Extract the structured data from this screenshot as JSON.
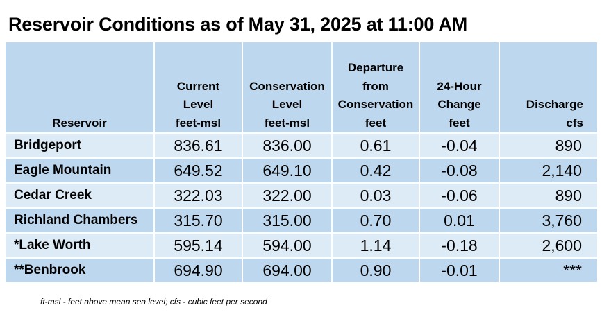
{
  "title": "Reservoir Conditions as of May 31, 2025 at 11:00 AM",
  "table": {
    "headers": [
      {
        "lines": [
          "Reservoir"
        ]
      },
      {
        "lines": [
          "Current",
          "Level",
          "feet-msl"
        ]
      },
      {
        "lines": [
          "Conservation",
          "Level",
          "feet-msl"
        ]
      },
      {
        "lines": [
          "Departure",
          "from",
          "Conservation",
          "feet"
        ]
      },
      {
        "lines": [
          "24-Hour",
          "Change",
          "feet"
        ]
      },
      {
        "lines": [
          "Discharge",
          "cfs"
        ]
      }
    ],
    "rows": [
      {
        "reservoir": "Bridgeport",
        "current": "836.61",
        "conservation": "836.00",
        "departure": "0.61",
        "change": "-0.04",
        "discharge": "890"
      },
      {
        "reservoir": "Eagle Mountain",
        "current": "649.52",
        "conservation": "649.10",
        "departure": "0.42",
        "change": "-0.08",
        "discharge": "2,140"
      },
      {
        "reservoir": "Cedar Creek",
        "current": "322.03",
        "conservation": "322.00",
        "departure": "0.03",
        "change": "-0.06",
        "discharge": "890"
      },
      {
        "reservoir": "Richland Chambers",
        "current": "315.70",
        "conservation": "315.00",
        "departure": "0.70",
        "change": "0.01",
        "discharge": "3,760"
      },
      {
        "reservoir": "*Lake Worth",
        "current": "595.14",
        "conservation": "594.00",
        "departure": "1.14",
        "change": "-0.18",
        "discharge": "2,600"
      },
      {
        "reservoir": "**Benbrook",
        "current": "694.90",
        "conservation": "694.00",
        "departure": "0.90",
        "change": "-0.01",
        "discharge": "***"
      }
    ]
  },
  "footnote": "ft-msl - feet above mean sea level; cfs - cubic feet per second",
  "colors": {
    "header_bg": "#bdd7ee",
    "row_light": "#ddebf7",
    "row_dark": "#bdd7ee"
  }
}
